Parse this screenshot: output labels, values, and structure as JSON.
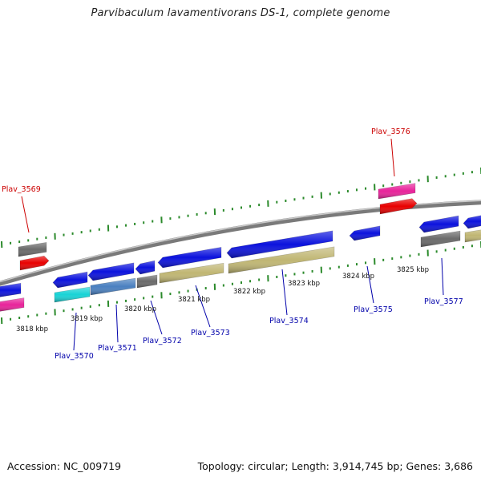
{
  "title": "Parvibaculum lavamentivorans DS-1, complete genome",
  "accession": "Accession: NC_009719",
  "topology": "Topology: circular; Length: 3,914,745 bp; Genes: 3,686",
  "colors": {
    "background": "#ffffff",
    "backbone": "#8a8a8a",
    "tick": "#2b8a2b",
    "label_forward": "#cc0000",
    "label_reverse": "#0000aa",
    "gene_blue": "#0b12dd",
    "gene_red": "#e80000",
    "gene_magenta": "#e8239a",
    "gene_gray": "#6a6a6a",
    "gene_cyan": "#18d3d6",
    "gene_steel": "#4a80c0",
    "gene_khaki": "#c0b673"
  },
  "kbp_labels": [
    "3818 kbp",
    "3819 kbp",
    "3820 kbp",
    "3821 kbp",
    "3822 kbp",
    "3823 kbp",
    "3824 kbp",
    "3825 kbp"
  ],
  "forward_labels": [
    "Plav_3569",
    "Plav_3576"
  ],
  "reverse_labels": [
    "Plav_3570",
    "Plav_3571",
    "Plav_3572",
    "Plav_3573",
    "Plav_3574",
    "Plav_3575",
    "Plav_3577"
  ]
}
